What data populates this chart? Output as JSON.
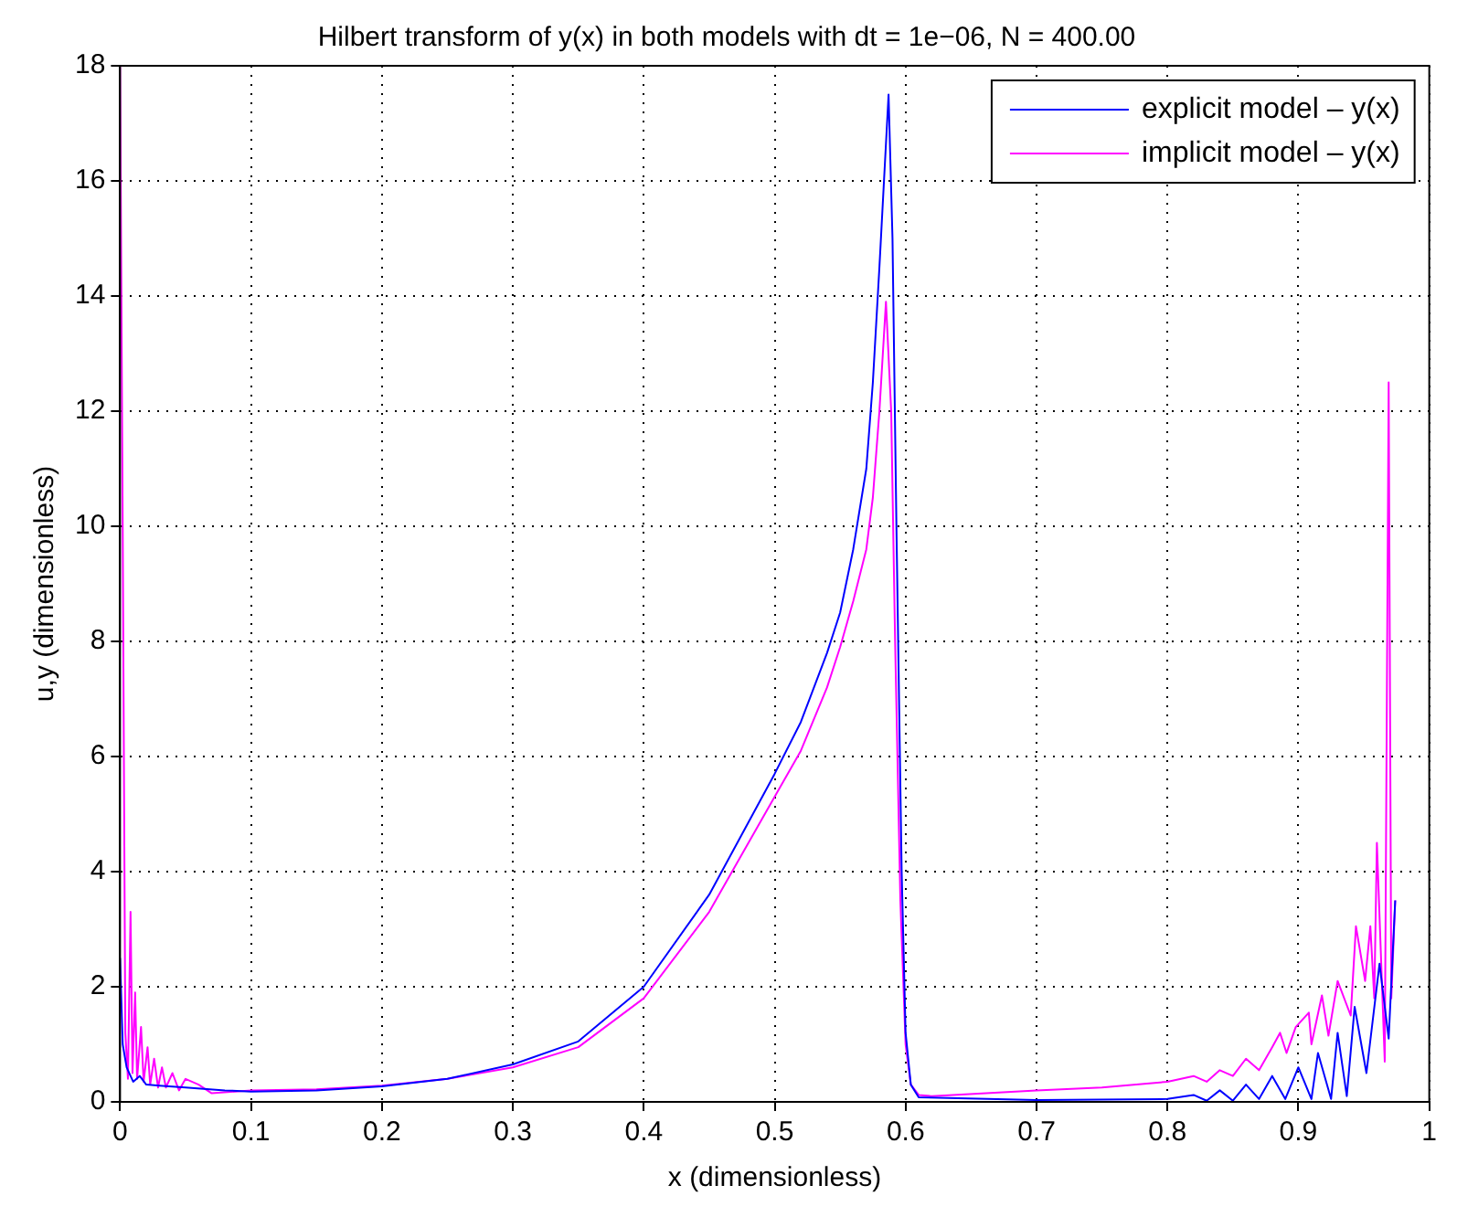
{
  "chart_data": {
    "type": "line",
    "title": "Hilbert transform of y(x) in both models with dt = 1e−06, N = 400.00",
    "xlabel": "x (dimensionless)",
    "ylabel": "u,y (dimensionless)",
    "xlim": [
      0,
      1
    ],
    "xticks": [
      0,
      0.1,
      0.2,
      0.3,
      0.4,
      0.5,
      0.6,
      0.7,
      0.8,
      0.9,
      1
    ],
    "ylim": [
      0,
      18
    ],
    "yticks": [
      0,
      2,
      4,
      6,
      8,
      10,
      12,
      14,
      16,
      18
    ],
    "grid": true,
    "legend": "top right",
    "marker": "none",
    "line_style": "solid",
    "series": [
      {
        "name": "explicit model – y(x)",
        "color": "#0000ff",
        "x": [
          0,
          0.002,
          0.005,
          0.008,
          0.01,
          0.015,
          0.02,
          0.03,
          0.05,
          0.08,
          0.1,
          0.15,
          0.2,
          0.25,
          0.3,
          0.35,
          0.4,
          0.45,
          0.5,
          0.52,
          0.54,
          0.55,
          0.56,
          0.57,
          0.575,
          0.58,
          0.587,
          0.59,
          0.593,
          0.597,
          0.6,
          0.604,
          0.61,
          0.7,
          0.8,
          0.82,
          0.83,
          0.84,
          0.85,
          0.86,
          0.87,
          0.88,
          0.89,
          0.9,
          0.91,
          0.915,
          0.925,
          0.93,
          0.937,
          0.943,
          0.952,
          0.962,
          0.969,
          0.974
        ],
        "values": [
          2.5,
          1.0,
          0.6,
          0.45,
          0.35,
          0.45,
          0.3,
          0.28,
          0.25,
          0.2,
          0.18,
          0.2,
          0.27,
          0.4,
          0.65,
          1.05,
          2.0,
          3.6,
          5.7,
          6.6,
          7.8,
          8.5,
          9.6,
          11.0,
          12.5,
          14.5,
          17.5,
          15,
          10,
          4,
          1.2,
          0.3,
          0.08,
          0.03,
          0.05,
          0.12,
          0.02,
          0.2,
          0.02,
          0.3,
          0.05,
          0.45,
          0.05,
          0.6,
          0.05,
          0.85,
          0.05,
          1.2,
          0.1,
          1.65,
          0.5,
          2.4,
          1.1,
          3.5
        ]
      },
      {
        "name": "implicit model – y(x)",
        "color": "#ff00ff",
        "x": [
          0,
          0.002,
          0.004,
          0.006,
          0.008,
          0.0095,
          0.0115,
          0.013,
          0.016,
          0.018,
          0.021,
          0.023,
          0.026,
          0.029,
          0.032,
          0.035,
          0.04,
          0.045,
          0.05,
          0.06,
          0.07,
          0.1,
          0.15,
          0.2,
          0.25,
          0.3,
          0.35,
          0.4,
          0.45,
          0.5,
          0.52,
          0.54,
          0.55,
          0.56,
          0.57,
          0.575,
          0.58,
          0.585,
          0.589,
          0.592,
          0.596,
          0.6,
          0.604,
          0.61,
          0.62,
          0.7,
          0.75,
          0.8,
          0.82,
          0.83,
          0.84,
          0.85,
          0.86,
          0.87,
          0.88,
          0.886,
          0.891,
          0.898,
          0.908,
          0.91,
          0.918,
          0.923,
          0.93,
          0.94,
          0.944,
          0.951,
          0.955,
          0.958,
          0.96,
          0.963,
          0.966,
          0.967,
          0.969,
          0.971,
          0.974
        ],
        "values": [
          18,
          10,
          1.2,
          0.4,
          3.3,
          0.5,
          1.9,
          0.4,
          1.3,
          0.35,
          0.95,
          0.3,
          0.75,
          0.25,
          0.6,
          0.25,
          0.5,
          0.2,
          0.4,
          0.3,
          0.15,
          0.2,
          0.22,
          0.28,
          0.4,
          0.6,
          0.95,
          1.8,
          3.3,
          5.3,
          6.1,
          7.2,
          7.9,
          8.7,
          9.6,
          10.5,
          12,
          13.9,
          12,
          8,
          3.5,
          1,
          0.3,
          0.12,
          0.1,
          0.2,
          0.25,
          0.35,
          0.45,
          0.35,
          0.55,
          0.45,
          0.75,
          0.55,
          0.95,
          1.2,
          0.85,
          1.3,
          1.55,
          1.0,
          1.85,
          1.15,
          2.1,
          1.5,
          3.05,
          2.1,
          3.05,
          1.8,
          4.5,
          2.6,
          0.7,
          4.6,
          12.5,
          1.8,
          3.5
        ]
      }
    ]
  }
}
